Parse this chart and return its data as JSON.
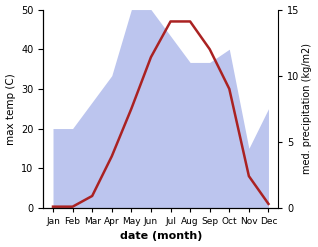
{
  "months": [
    "Jan",
    "Feb",
    "Mar",
    "Apr",
    "May",
    "Jun",
    "Jul",
    "Aug",
    "Sep",
    "Oct",
    "Nov",
    "Dec"
  ],
  "month_x": [
    1,
    2,
    3,
    4,
    5,
    6,
    7,
    8,
    9,
    10,
    11,
    12
  ],
  "temperature": [
    0.3,
    0.3,
    3,
    13,
    25,
    38,
    47,
    47,
    40,
    30,
    8,
    1
  ],
  "precipitation": [
    6.0,
    6.0,
    8.0,
    10.0,
    15.0,
    15.0,
    13.0,
    11.0,
    11.0,
    12.0,
    4.5,
    7.5
  ],
  "temp_color": "#aa2222",
  "precip_fill_color": "#bcc5ee",
  "left_ylim": [
    0,
    50
  ],
  "right_ylim": [
    0,
    15
  ],
  "left_yticks": [
    0,
    10,
    20,
    30,
    40,
    50
  ],
  "right_yticks": [
    0,
    5,
    10,
    15
  ],
  "xlabel": "date (month)",
  "ylabel_left": "max temp (C)",
  "ylabel_right": "med. precipitation (kg/m2)",
  "temp_linewidth": 1.8,
  "fig_bg": "#ffffff"
}
